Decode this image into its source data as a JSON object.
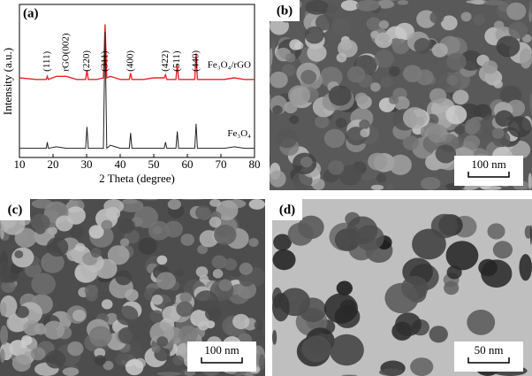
{
  "chart_data": {
    "type": "line",
    "panel_label": "(a)",
    "xlabel": "2 Theta (degree)",
    "ylabel": "Intensity (a.u.)",
    "xlim": [
      10,
      80
    ],
    "xticks": [
      10,
      20,
      30,
      40,
      50,
      60,
      70,
      80
    ],
    "ylim": [
      0,
      100
    ],
    "x": [
      10,
      15,
      18,
      18.3,
      18.6,
      21,
      24,
      27,
      29.7,
      30.1,
      30.5,
      33,
      35,
      35.5,
      36,
      37.1,
      40,
      42.7,
      43.1,
      43.5,
      47,
      50,
      53.1,
      53.5,
      53.9,
      56.6,
      57,
      57.4,
      60,
      62.2,
      62.6,
      63,
      67,
      71,
      74,
      77,
      80
    ],
    "series": [
      {
        "name": "Fe₃O₄/rGO",
        "color": "#e8262a",
        "values": [
          52,
          51,
          51,
          53,
          51,
          53,
          53,
          51,
          51,
          57,
          51,
          51,
          52,
          87,
          52,
          53,
          51,
          51,
          55,
          51,
          51,
          52,
          52,
          54,
          51,
          51,
          61,
          51,
          51,
          51,
          68,
          51,
          51,
          51,
          52,
          51,
          51
        ]
      },
      {
        "name": "Fe₃O₄",
        "color": "#222222",
        "values": [
          6,
          6,
          6,
          10,
          6,
          7,
          6,
          6,
          6,
          20,
          6,
          6,
          6,
          82,
          6,
          8,
          6,
          6,
          16,
          6,
          6,
          6,
          6,
          10,
          6,
          6,
          17,
          6,
          6,
          6,
          22,
          6,
          6,
          6,
          7,
          6,
          6
        ]
      }
    ],
    "peaks": [
      {
        "label": "(111)",
        "x": 18.3
      },
      {
        "label": "rGO(002)",
        "x": 24
      },
      {
        "label": "(220)",
        "x": 30.1
      },
      {
        "label": "(311)",
        "x": 35.5
      },
      {
        "label": "(400)",
        "x": 43.1
      },
      {
        "label": "(422)",
        "x": 53.5
      },
      {
        "label": "(511)",
        "x": 57
      },
      {
        "label": "(440)",
        "x": 62.6
      }
    ]
  },
  "images": [
    {
      "label": "(b)",
      "scale_bar": "100 nm"
    },
    {
      "label": "(c)",
      "scale_bar": "100 nm"
    },
    {
      "label": "(d)",
      "scale_bar": "50 nm"
    }
  ]
}
